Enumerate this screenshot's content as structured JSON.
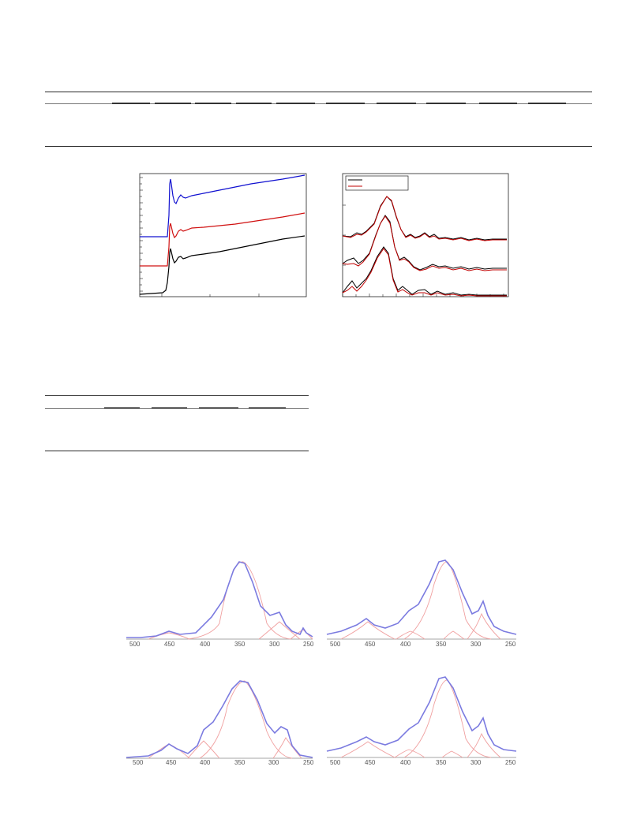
{
  "table1": {
    "columns": 11
  },
  "table2": {
    "columns": 6
  },
  "figure_xanes": {
    "panel_left": {
      "series_colors": [
        "#1010d0",
        "#d01010",
        "#000000"
      ]
    },
    "panel_right": {
      "legend_colors": [
        "#000000",
        "#c00000"
      ]
    }
  },
  "figure_spectra": {
    "x_ticks": [
      "500",
      "450",
      "400",
      "350",
      "300",
      "250"
    ],
    "fit_color": "#7b7be0",
    "component_color": "#f0a0a0"
  }
}
